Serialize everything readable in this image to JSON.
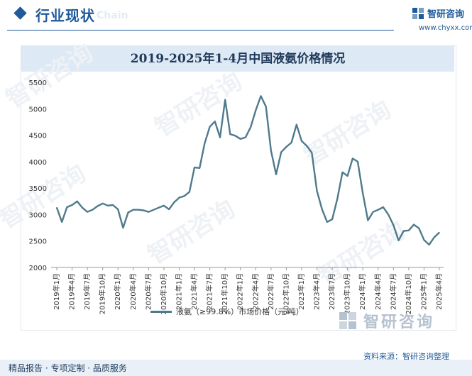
{
  "header": {
    "title": "行业现状",
    "title_watermark": "Chain",
    "brand_name": "智研咨询",
    "brand_url": "www.chyxx.com"
  },
  "watermark_text": "智研咨询",
  "chart_data": {
    "type": "line",
    "title": "2019-2025年1-4月中国液氨价格情况",
    "xlabel": "",
    "ylabel": "",
    "ylim": [
      2000,
      5500
    ],
    "yticks": [
      2000,
      2500,
      3000,
      3500,
      4000,
      4500,
      5000,
      5500
    ],
    "grid": false,
    "legend_position": "bottom",
    "x": [
      "2019年1月",
      "2019年2月",
      "2019年3月",
      "2019年4月",
      "2019年5月",
      "2019年6月",
      "2019年7月",
      "2019年8月",
      "2019年9月",
      "2019年10月",
      "2019年11月",
      "2019年12月",
      "2020年1月",
      "2020年2月",
      "2020年3月",
      "2020年4月",
      "2020年5月",
      "2020年6月",
      "2020年7月",
      "2020年8月",
      "2020年9月",
      "2020年10月",
      "2020年11月",
      "2020年12月",
      "2021年1月",
      "2021年2月",
      "2021年3月",
      "2021年4月",
      "2021年5月",
      "2021年6月",
      "2021年7月",
      "2021年8月",
      "2021年9月",
      "2021年10月",
      "2021年11月",
      "2021年12月",
      "2022年1月",
      "2022年2月",
      "2022年3月",
      "2022年4月",
      "2022年5月",
      "2022年6月",
      "2022年7月",
      "2022年8月",
      "2022年9月",
      "2022年10月",
      "2022年11月",
      "2022年12月",
      "2023年1月",
      "2023年2月",
      "2023年3月",
      "2023年4月",
      "2023年5月",
      "2023年6月",
      "2023年7月",
      "2023年8月",
      "2023年9月",
      "2023年10月",
      "2023年11月",
      "2023年12月",
      "2024年1月",
      "2024年2月",
      "2024年3月",
      "2024年4月",
      "2024年5月",
      "2024年6月",
      "2024年7月",
      "2024年8月",
      "2024年9月",
      "2024年10月",
      "2024年11月",
      "2024年12月",
      "2025年1月",
      "2025年2月",
      "2025年3月",
      "2025年4月"
    ],
    "tick_labels": [
      "2019年1月",
      "2019年4月",
      "2019年7月",
      "2019年10月",
      "2020年1月",
      "2020年4月",
      "2020年7月",
      "2020年10月",
      "2021年1月",
      "2021年4月",
      "2021年7月",
      "2021年10月",
      "2022年1月",
      "2022年4月",
      "2022年7月",
      "2022年10月",
      "2023年1月",
      "2023年4月",
      "2023年7月",
      "2023年10月",
      "2024年1月",
      "2024年4月",
      "2024年7月",
      "2024年10月",
      "2025年1月",
      "2025年4月"
    ],
    "series": [
      {
        "name": "液氨（≥99.8%）市场价格（元/吨）",
        "color": "#4f7a8c",
        "values": [
          3130,
          2860,
          3140,
          3180,
          3250,
          3130,
          3050,
          3090,
          3160,
          3210,
          3170,
          3180,
          3100,
          2750,
          3040,
          3090,
          3090,
          3080,
          3050,
          3090,
          3130,
          3170,
          3100,
          3230,
          3320,
          3350,
          3430,
          3890,
          3880,
          4350,
          4660,
          4760,
          4460,
          5170,
          4520,
          4490,
          4430,
          4460,
          4650,
          4970,
          5240,
          5040,
          4210,
          3760,
          4180,
          4280,
          4360,
          4700,
          4390,
          4300,
          4170,
          3450,
          3100,
          2860,
          2910,
          3300,
          3800,
          3730,
          4060,
          4000,
          3400,
          2890,
          3050,
          3090,
          3140,
          3000,
          2800,
          2510,
          2690,
          2700,
          2810,
          2740,
          2520,
          2430,
          2570,
          2660
        ]
      }
    ]
  },
  "legend": {
    "label": "液氨（≥99.8%）市场价格（元/吨）"
  },
  "footer": {
    "brand_name": "智研咨询",
    "source": "资料来源：智研咨询整理",
    "services": "精品报告 · 专项定制 · 品质服务"
  }
}
